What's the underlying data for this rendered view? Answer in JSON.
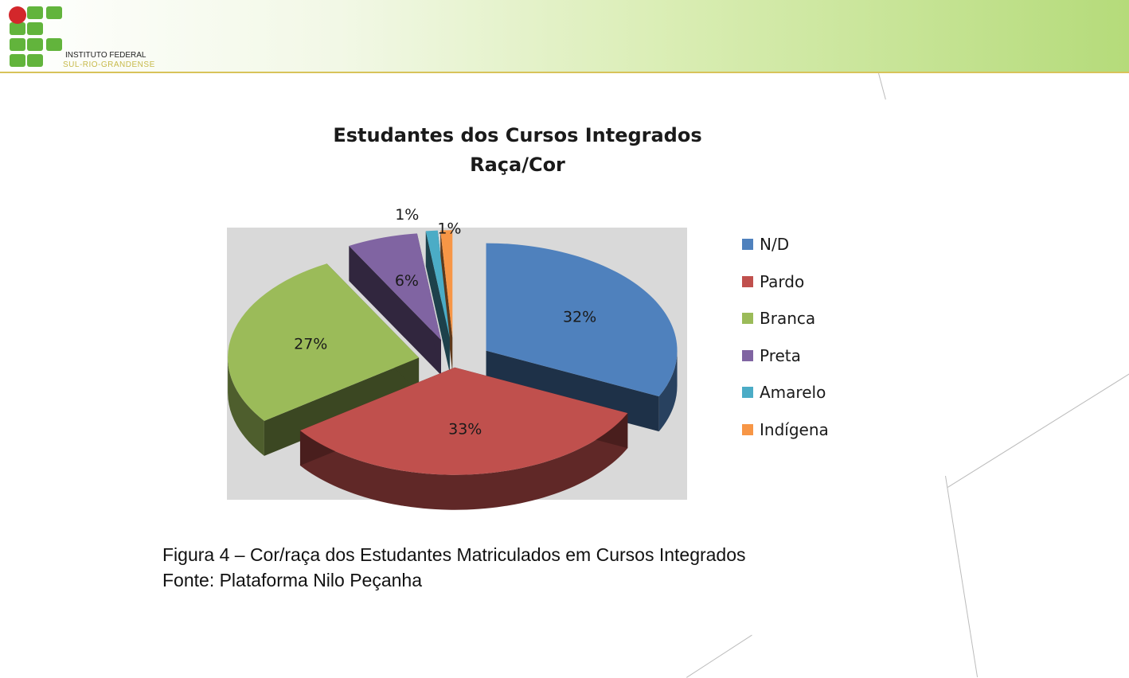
{
  "header": {
    "institution_line1": "INSTITUTO FEDERAL",
    "institution_line2": "SUL-RIO-GRANDENSE"
  },
  "chart_data": {
    "type": "pie",
    "title_line1": "Estudantes dos Cursos Integrados",
    "title_line2": "Raça/Cor",
    "slices": [
      {
        "label": "N/D",
        "value": 32,
        "display": "32%",
        "color": "#4f81bd"
      },
      {
        "label": "Pardo",
        "value": 33,
        "display": "33%",
        "color": "#c0504d"
      },
      {
        "label": "Branca",
        "value": 27,
        "display": "27%",
        "color": "#9bbb59"
      },
      {
        "label": "Preta",
        "value": 6,
        "display": "6%",
        "color": "#8064a2"
      },
      {
        "label": "Amarelo",
        "value": 1,
        "display": "1%",
        "color": "#4bacc6"
      },
      {
        "label": "Indígena",
        "value": 1,
        "display": "1%",
        "color": "#f79646"
      }
    ],
    "legend_position": "right"
  },
  "caption": {
    "line1": "Figura 4 – Cor/raça dos Estudantes Matriculados em Cursos Integrados",
    "line2": "Fonte: Plataforma Nilo Peçanha"
  }
}
